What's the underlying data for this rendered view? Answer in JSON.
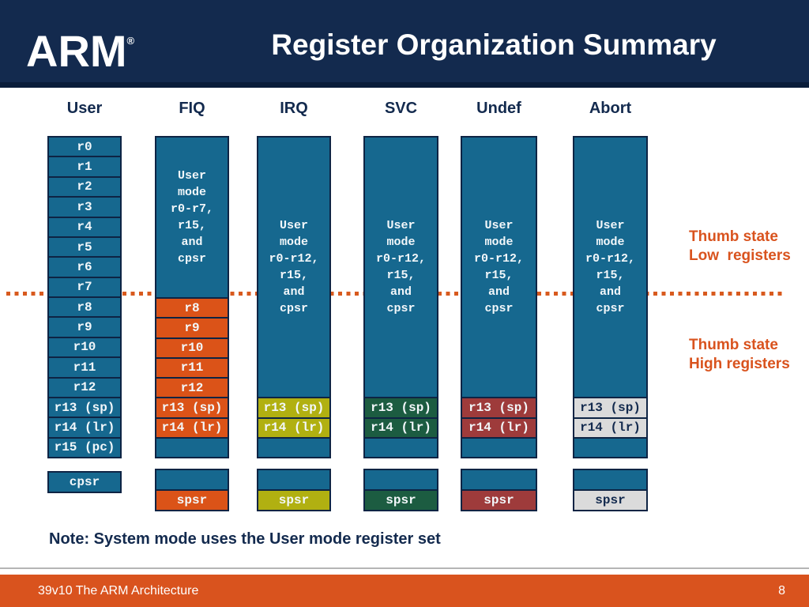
{
  "header": {
    "logo_text": "ARM",
    "registered_mark": "®",
    "title": "Register Organization Summary"
  },
  "colors": {
    "header_navy": "#132A4E",
    "header_strip": "#0A1D3A",
    "cell_teal": "#16688F",
    "cell_border": "#0E2444",
    "cell_text": "#F2F7FA",
    "navy_text": "#132A4E",
    "accent_orange": "#D9531E",
    "fiq_orange": "#DB5318",
    "irq_olive": "#B1B011",
    "svc_green": "#1C5C41",
    "undef_maroon": "#9E3B3B",
    "abort_gray": "#DBDBDB"
  },
  "columns": [
    {
      "id": "user",
      "label": "User",
      "cells": [
        "r0",
        "r1",
        "r2",
        "r3",
        "r4",
        "r5",
        "r6",
        "r7",
        "r8",
        "r9",
        "r10",
        "r11",
        "r12",
        "r13 (sp)",
        "r14 (lr)",
        "r15 (pc)"
      ],
      "status": {
        "type": "single",
        "label": "cpsr"
      }
    },
    {
      "id": "fiq",
      "label": "FIQ",
      "mode_text": "User\nmode\nr0-r7,\nr15,\nand\ncpsr",
      "banked": [
        "r8",
        "r9",
        "r10",
        "r11",
        "r12",
        "r13 (sp)",
        "r14 (lr)"
      ],
      "bank_color": "#DB5318",
      "bank_text_color": "#F2F7FA",
      "status": {
        "type": "banked",
        "label": "spsr"
      }
    },
    {
      "id": "irq",
      "label": "IRQ",
      "mode_text": "User\nmode\nr0-r12,\nr15,\nand\ncpsr",
      "banked": [
        "r13 (sp)",
        "r14 (lr)"
      ],
      "bank_color": "#B1B011",
      "bank_text_color": "#F2F7FA",
      "status": {
        "type": "banked",
        "label": "spsr"
      }
    },
    {
      "id": "svc",
      "label": "SVC",
      "mode_text": "User\nmode\nr0-r12,\nr15,\nand\ncpsr",
      "banked": [
        "r13 (sp)",
        "r14 (lr)"
      ],
      "bank_color": "#1C5C41",
      "bank_text_color": "#F2F7FA",
      "status": {
        "type": "banked",
        "label": "spsr"
      }
    },
    {
      "id": "undef",
      "label": "Undef",
      "mode_text": "User\nmode\nr0-r12,\nr15,\nand\ncpsr",
      "banked": [
        "r13 (sp)",
        "r14 (lr)"
      ],
      "bank_color": "#9E3B3B",
      "bank_text_color": "#F2F7FA",
      "status": {
        "type": "banked",
        "label": "spsr"
      }
    },
    {
      "id": "abort",
      "label": "Abort",
      "mode_text": "User\nmode\nr0-r12,\nr15,\nand\ncpsr",
      "banked": [
        "r13 (sp)",
        "r14 (lr)"
      ],
      "bank_color": "#DBDBDB",
      "bank_text_color": "#132A4E",
      "status": {
        "type": "banked",
        "label": "spsr"
      }
    }
  ],
  "annotations": {
    "low": "Thumb state\nLow  registers",
    "high": "Thumb state\nHigh registers"
  },
  "note": "Note: System mode uses the User mode register set",
  "footer": {
    "left_text": "39v10 The ARM Architecture",
    "page_number": "8"
  }
}
